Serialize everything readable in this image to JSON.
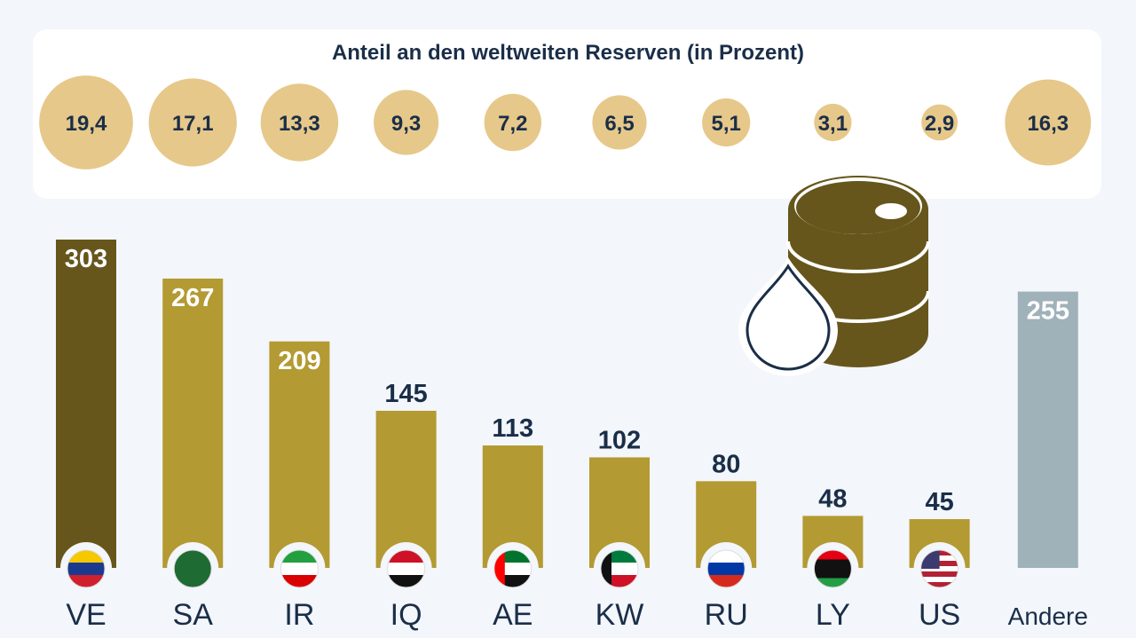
{
  "chart_data": {
    "type": "bar",
    "categories": [
      "VE",
      "SA",
      "IR",
      "IQ",
      "AE",
      "KW",
      "RU",
      "LY",
      "US",
      "Andere"
    ],
    "values": [
      303,
      267,
      209,
      145,
      113,
      102,
      80,
      48,
      45,
      255
    ],
    "share_title": "Anteil an den weltweiten Reserven (in Prozent)",
    "shares": [
      "19,4",
      "17,1",
      "13,3",
      "9,3",
      "7,2",
      "6,5",
      "5,1",
      "3,1",
      "2,9",
      "16,3"
    ],
    "share_values": [
      19.4,
      17.1,
      13.3,
      9.3,
      7.2,
      6.5,
      5.1,
      3.1,
      2.9,
      16.3
    ],
    "colors": {
      "highlight": "#66561c",
      "bar": "#b39a32",
      "other": "#9fb1b9",
      "bubble": "#e6c88a",
      "text": "#1a2e48"
    },
    "xlabel": "",
    "ylabel": "",
    "ylim": [
      0,
      303
    ]
  }
}
